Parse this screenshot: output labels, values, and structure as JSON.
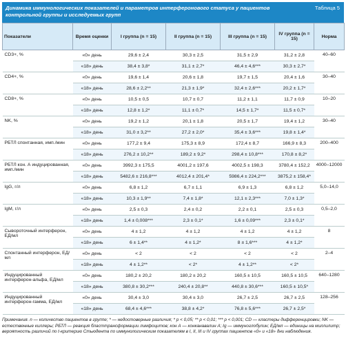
{
  "caption": {
    "title": "Динамика иммунологических показателей и параметров интерферонового статуса у пациентов контрольной группы и исследуемых групп",
    "label": "Таблица 5"
  },
  "table": {
    "header": [
      "Показатели",
      "Время оценки",
      "I группа (n = 15)",
      "II группа (n = 15)",
      "III группа (n = 15)",
      "IV группа (n = 15)",
      "Норма"
    ],
    "rows": [
      {
        "indicator": "CD3+, %",
        "norm": "40–60",
        "days": [
          {
            "time": "«0» день",
            "values": [
              "29,6 ± 2,4",
              "30,3 ± 2,5",
              "31,5 ± 2,9",
              "31,2 ± 2,8"
            ]
          },
          {
            "time": "«18» день",
            "values": [
              "38,4 ± 3,8*",
              "31,1 ± 2,7*",
              "46,4 ± 4,6***",
              "30,3 ± 2,7*"
            ]
          }
        ]
      },
      {
        "indicator": "CD4+, %",
        "norm": "30–40",
        "days": [
          {
            "time": "«0» день",
            "values": [
              "19,6 ± 1,4",
              "20,6 ± 1,8",
              "19,7 ± 1,5",
              "20,4 ± 1,6"
            ]
          },
          {
            "time": "«18» день",
            "values": [
              "28,6 ± 2,2**",
              "21,3 ± 1,9*",
              "32,4 ± 2,6***",
              "20,2 ± 1,7*"
            ]
          }
        ]
      },
      {
        "indicator": "CD8+, %",
        "norm": "10–20",
        "days": [
          {
            "time": "«0» день",
            "values": [
              "10,5 ± 0,5",
              "10,7 ± 0,7",
              "11,2 ± 1,1",
              "11,7 ± 0,9"
            ]
          },
          {
            "time": "«18» день",
            "values": [
              "12,8 ± 1,2*",
              "11,1 ± 0,7*",
              "14,5 ± 1,7*",
              "11,5 ± 0,7*"
            ]
          }
        ]
      },
      {
        "indicator": "NK, %",
        "norm": "30–40",
        "days": [
          {
            "time": "«0» день",
            "values": [
              "19,2 ± 1,2",
              "20,1 ± 1,8",
              "20,5 ± 1,7",
              "19,4 ± 1,2"
            ]
          },
          {
            "time": "«18» день",
            "values": [
              "31,0 ± 3,2**",
              "27,2 ± 2,0*",
              "35,4 ± 3,6***",
              "19,8 ± 1,4*"
            ]
          }
        ]
      },
      {
        "indicator": "РБТЛ спонтанная, имп./мин",
        "norm": "200–400",
        "days": [
          {
            "time": "«0» день",
            "values": [
              "177,2 ± 9,4",
              "175,3 ± 8,9",
              "172,4 ± 8,7",
              "166,9 ± 8,3"
            ]
          },
          {
            "time": "«18» день",
            "values": [
              "276,2 ± 10,2**",
              "189,2 ± 9,2*",
              "298,4 ± 10,8***",
              "170,8 ± 8,2*"
            ]
          }
        ]
      },
      {
        "indicator": "РБТЛ кон. А индуцированная, имп./мин",
        "norm": "4000–12000",
        "days": [
          {
            "time": "«0» день",
            "values": [
              "3992,3 ± 175,5",
              "4001,2 ± 197,6",
              "4002,5 ± 198,3",
              "3780,4 ± 152,2"
            ]
          },
          {
            "time": "«18» день",
            "values": [
              "5482,6 ± 216,8***",
              "4012,4 ± 201,4*",
              "5986,4 ± 224,2***",
              "3875,2 ± 158,4*"
            ]
          }
        ]
      },
      {
        "indicator": "IgG, г/л",
        "norm": "5,0–14,0",
        "days": [
          {
            "time": "«0» день",
            "values": [
              "6,8 ± 1,2",
              "6,7 ± 1,1",
              "6,9 ± 1,3",
              "6,8 ± 1,2"
            ]
          },
          {
            "time": "«18» день",
            "values": [
              "10,3 ± 1,9**",
              "7,4 ± 1,8*",
              "12,1 ± 2,3***",
              "7,0 ± 1,3*"
            ]
          }
        ]
      },
      {
        "indicator": "IgM, г/л",
        "norm": "0,5–2,0",
        "days": [
          {
            "time": "«0» день",
            "values": [
              "2,5 ± 0,3",
              "2,4 ± 0,2",
              "2,2 ± 0,1",
              "2,5 ± 0,3"
            ]
          },
          {
            "time": "«18» день",
            "values": [
              "1,4 ± 0,008***",
              "2,3 ± 0,1*",
              "1,6 ± 0,09***",
              "2,3 ± 0,1*"
            ]
          }
        ]
      },
      {
        "indicator": "Сывороточный интерферон, ЕД/мл",
        "norm": "8",
        "days": [
          {
            "time": "«0» день",
            "values": [
              "4 ± 1,2",
              "4 ± 1,2",
              "4 ± 1,2",
              "4 ± 1,2"
            ]
          },
          {
            "time": "«18» день",
            "values": [
              "6 ± 1,4**",
              "4 ± 1,2*",
              "8 ± 1,6***",
              "4 ± 1,2*"
            ]
          }
        ]
      },
      {
        "indicator": "Спонтанный интерферон, ЕД/мл",
        "norm": "2–4",
        "days": [
          {
            "time": "«0» день",
            "values": [
              "< 2",
              "< 2",
              "< 2",
              "< 2"
            ]
          },
          {
            "time": "«18» день",
            "values": [
              "4 ± 1,2**",
              "< 2*",
              "4 ± 1,2**",
              "< 2*"
            ]
          }
        ]
      },
      {
        "indicator": "Индуцированный интерферон-альфа, ЕД/мл",
        "norm": "640–1280",
        "days": [
          {
            "time": "«0» день",
            "values": [
              "180,2 ± 20,2",
              "180,2 ± 20,2",
              "160,5 ± 10,5",
              "160,5 ± 10,5"
            ]
          },
          {
            "time": "«18» день",
            "values": [
              "380,8 ± 30,2***",
              "240,4 ± 20,8**",
              "440,8 ± 30,6***",
              "160,5 ± 10,5*"
            ]
          }
        ]
      },
      {
        "indicator": "Индуцированный интерферон-гамма, ЕД/мл",
        "norm": "128–256",
        "days": [
          {
            "time": "«0» день",
            "values": [
              "30,4 ± 3,0",
              "30,4 ± 3,0",
              "26,7 ± 2,5",
              "26,7 ± 2,5"
            ]
          },
          {
            "time": "«18» день",
            "values": [
              "68,4 ± 4,6***",
              "38,8 ± 4,2*",
              "76,8 ± 5,6***",
              "26,7 ± 2,5*"
            ]
          }
        ]
      }
    ]
  },
  "note": "Примечания. n — количество пациентов в группе; * — недостоверные различия; * p < 0,05; ** p < 0,01; *** p < 0,001; CD — кластеры дифференцировки; NK — естественные киллеры; РБТЛ — реакция бласттрансформации лимфоцитов; кон А — конканавалин А; Ig — иммуноглобулин; ЕД/мл — единицы на миллилитр; вероятность различий по t-критерию Стьюдента по иммунологическим показателям в I, II, III и IV группах пациентов «0» и «18» дни наблюдения."
}
